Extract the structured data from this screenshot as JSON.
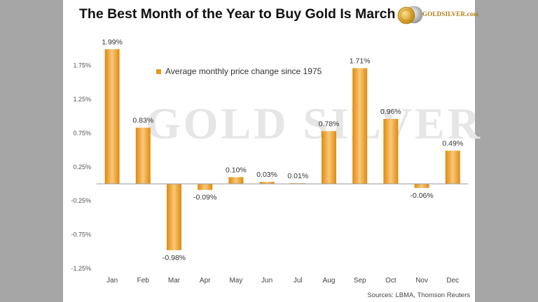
{
  "title": "The Best Month of the Year to Buy Gold Is March",
  "logo": {
    "text": "GOLDSILVER.com"
  },
  "watermark": "GOLD SILVER",
  "source": "Sources: LBMA, Thomson Reuters",
  "colors": {
    "bar_light": "#f8c87a",
    "bar_dark": "#e08a0c",
    "legend": "#e69b1e",
    "axis": "#9a9a9a"
  },
  "chart_data": {
    "type": "bar",
    "title": "The Best Month of the Year to Buy Gold Is March",
    "legend": "Average monthly price change since 1975",
    "legend_position": "top-left",
    "categories": [
      "Jan",
      "Feb",
      "Mar",
      "Apr",
      "May",
      "Jun",
      "Jul",
      "Aug",
      "Sep",
      "Oct",
      "Nov",
      "Dec"
    ],
    "values": [
      1.99,
      0.83,
      -0.98,
      -0.09,
      0.1,
      0.03,
      0.01,
      0.78,
      1.71,
      0.96,
      -0.06,
      0.49
    ],
    "value_labels": [
      "1.99%",
      "0.83%",
      "-0.98%",
      "-0.09%",
      "0.10%",
      "0.03%",
      "0.01%",
      "0.78%",
      "1.71%",
      "0.96%",
      "-0.06%",
      "0.49%"
    ],
    "yticks": [
      1.75,
      1.25,
      0.75,
      0.25,
      -0.25,
      -0.75,
      -1.25
    ],
    "ytick_labels": [
      "1.75%",
      "1.25%",
      "0.75%",
      "0.25%",
      "-0.25%",
      "-0.75%",
      "-1.25%"
    ],
    "ylim": [
      -1.25,
      1.99
    ],
    "xlabel": "",
    "ylabel": "",
    "grid": false
  }
}
